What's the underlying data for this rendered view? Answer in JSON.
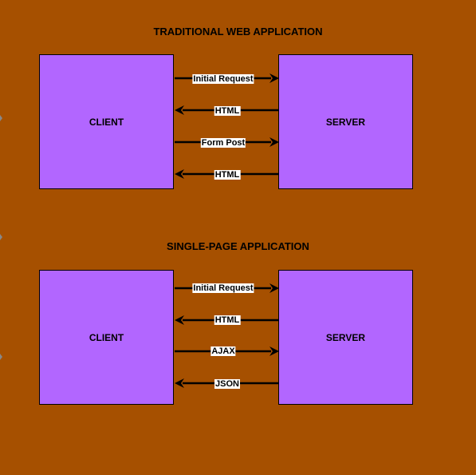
{
  "colors": {
    "background": "#A65000",
    "box_fill": "#B266FF",
    "arrow": "#000000",
    "label_bg": "#FFFFFF"
  },
  "diagrams": [
    {
      "title": "TRADITIONAL WEB APPLICATION",
      "client_label": "CLIENT",
      "server_label": "SERVER",
      "arrows": [
        {
          "label": "Initial Request",
          "direction": "client-to-server"
        },
        {
          "label": "HTML",
          "direction": "server-to-client"
        },
        {
          "label": "Form Post",
          "direction": "client-to-server"
        },
        {
          "label": "HTML",
          "direction": "server-to-client"
        }
      ]
    },
    {
      "title": "SINGLE-PAGE APPLICATION",
      "client_label": "CLIENT",
      "server_label": "SERVER",
      "arrows": [
        {
          "label": "Initial Request",
          "direction": "client-to-server"
        },
        {
          "label": "HTML",
          "direction": "server-to-client"
        },
        {
          "label": "AJAX",
          "direction": "client-to-server"
        },
        {
          "label": "JSON",
          "direction": "server-to-client"
        }
      ]
    }
  ]
}
